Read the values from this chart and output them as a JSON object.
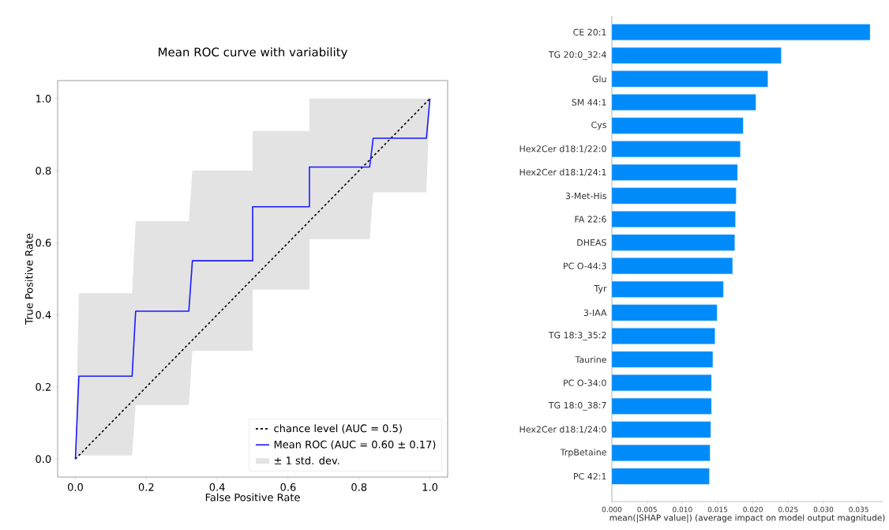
{
  "chart_data": [
    {
      "type": "line",
      "title": "Mean ROC curve with variability",
      "xlabel": "False Positive Rate",
      "ylabel": "True Positive Rate",
      "xlim": [
        -0.05,
        1.05
      ],
      "ylim": [
        -0.05,
        1.05
      ],
      "xticks": [
        {
          "value": 0,
          "label": "0.0"
        },
        0.2,
        0.4,
        0.6,
        0.8,
        {
          "value": 1,
          "label": "1.0"
        }
      ],
      "yticks": [
        {
          "value": 0,
          "label": "0.0"
        },
        0.2,
        0.4,
        0.6,
        0.8,
        {
          "value": 1,
          "label": "1.0"
        }
      ],
      "grid": false,
      "legend": "bottom right",
      "marker": "none",
      "series": [
        {
          "name": "chance level (AUC = 0.5)",
          "type": "line",
          "color": "#000000",
          "line_style": "dashed",
          "x": [
            0,
            1
          ],
          "values": [
            0,
            1
          ]
        },
        {
          "name": "Mean ROC (AUC = 0.60 ± 0.17)",
          "type": "line",
          "color": "#1a1aff",
          "line_style": "solid",
          "x": [
            0,
            0.01,
            0.16,
            0.17,
            0.32,
            0.33,
            0.5,
            0.5,
            0.66,
            0.66,
            0.83,
            0.84,
            0.99,
            1.0
          ],
          "values": [
            0,
            0.23,
            0.23,
            0.41,
            0.41,
            0.55,
            0.55,
            0.7,
            0.7,
            0.81,
            0.81,
            0.89,
            0.89,
            1.0
          ],
          "lower": [
            0,
            0.01,
            0.01,
            0.15,
            0.15,
            0.3,
            0.3,
            0.47,
            0.47,
            0.61,
            0.61,
            0.74,
            0.74,
            1.0
          ],
          "upper": [
            0,
            0.46,
            0.46,
            0.66,
            0.66,
            0.8,
            0.8,
            0.91,
            0.91,
            1.0,
            1.0,
            1.0,
            1.0,
            1.0
          ]
        }
      ],
      "annotations": [
        "± 1 std. dev."
      ]
    },
    {
      "type": "bar",
      "orientation": "horizontal",
      "xlabel": "mean(|SHAP value|) (average impact on model output magnitude)",
      "categories": [
        "CE 20:1",
        "TG 20:0_32:4",
        "Glu",
        "SM 44:1",
        "Cys",
        "Hex2Cer d18:1/22:0",
        "Hex2Cer d18:1/24:1",
        "3-Met-His",
        "FA 22:6",
        "DHEAS",
        "PC O-44:3",
        "Tyr",
        "3-IAA",
        "TG 18:3_35:2",
        "Taurine",
        "PC O-34:0",
        "TG 18:0_38:7",
        "Hex2Cer d18:1/24:0",
        "TrpBetaine",
        "PC 42:1"
      ],
      "values": [
        0.0366,
        0.024,
        0.0221,
        0.0204,
        0.0186,
        0.0182,
        0.0178,
        0.0176,
        0.0175,
        0.0174,
        0.0171,
        0.0158,
        0.0149,
        0.0146,
        0.0143,
        0.0141,
        0.0141,
        0.014,
        0.0139,
        0.0138
      ],
      "color": "#008bfb",
      "xlim": [
        0,
        0.0384
      ],
      "xticks": [
        {
          "value": 0,
          "label": "0.000"
        },
        0.005,
        {
          "value": 0.01,
          "label": "0.010"
        },
        0.015,
        {
          "value": 0.02,
          "label": "0.020"
        },
        0.025,
        {
          "value": 0.03,
          "label": "0.030"
        },
        0.035
      ],
      "grid": false
    }
  ]
}
